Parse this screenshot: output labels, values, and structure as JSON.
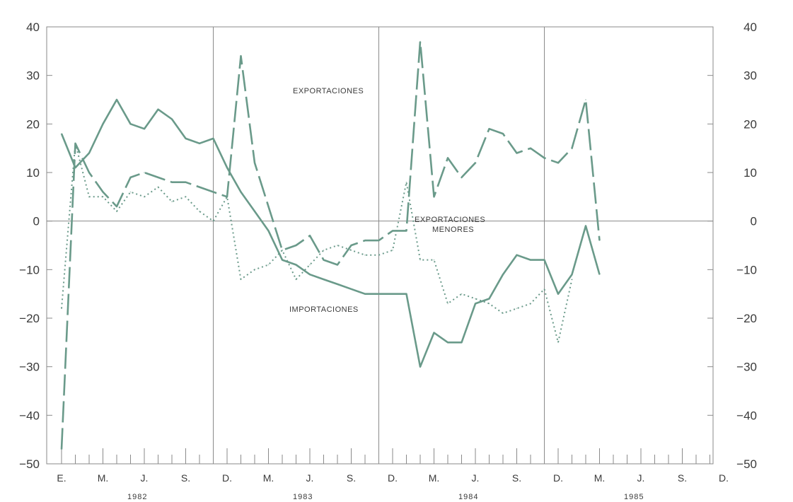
{
  "chart_data": {
    "type": "line",
    "title": "",
    "xlabel": "",
    "ylabel": "",
    "ylim": [
      -50,
      40
    ],
    "yticks": [
      40,
      30,
      20,
      10,
      0,
      -10,
      -20,
      -30,
      -40,
      -50
    ],
    "ytick_labels": [
      "40",
      "30",
      "20",
      "10",
      "0",
      "−10",
      "−20",
      "−30",
      "−40",
      "−50"
    ],
    "xtick_labels": [
      "E.",
      "M.",
      "J.",
      "S.",
      "D.",
      "M.",
      "J.",
      "S.",
      "D.",
      "M.",
      "J.",
      "S.",
      "D.",
      "M.",
      "J.",
      "S.",
      "D."
    ],
    "year_labels": [
      "1982",
      "1983",
      "1984",
      "1985"
    ],
    "grid": "vertical lines at each December, horizontal line at zero",
    "colors": {
      "axis": "#8a8a8a",
      "series": "#6a9a8a",
      "text": "#3a3a3a"
    },
    "annotations": [
      {
        "text": "EXPORTACIONES",
        "series": "Exportaciones"
      },
      {
        "text": "EXPORTACIONES",
        "series": "Exportaciones menores"
      },
      {
        "text": "MENORES",
        "series": "Exportaciones menores"
      },
      {
        "text": "IMPORTACIONES",
        "series": "Importaciones"
      }
    ],
    "series": [
      {
        "name": "Exportaciones",
        "style": "dashed",
        "values": [
          -47,
          16,
          10,
          6,
          3,
          9,
          10,
          9,
          8,
          8,
          7,
          6,
          5,
          34,
          12,
          3,
          -6,
          -5,
          -3,
          -8,
          -9,
          -5,
          -4,
          -4,
          -2,
          -2,
          37,
          5,
          13,
          9,
          12,
          19,
          18,
          14,
          15,
          13,
          12,
          15,
          25,
          -4
        ]
      },
      {
        "name": "Importaciones",
        "style": "solid",
        "values": [
          18,
          11,
          14,
          20,
          25,
          20,
          19,
          23,
          21,
          17,
          16,
          17,
          11,
          6,
          2,
          -2,
          -8,
          -9,
          -11,
          -12,
          -13,
          -14,
          -15,
          -15,
          -15,
          -15,
          -30,
          -23,
          -25,
          -25,
          -17,
          -16,
          -11,
          -7,
          -8,
          -8,
          -15,
          -11,
          -1,
          -11
        ]
      },
      {
        "name": "Exportaciones menores",
        "style": "dotted",
        "values": [
          -18,
          16,
          5,
          5,
          2,
          6,
          5,
          7,
          4,
          5,
          2,
          0,
          5,
          -12,
          -10,
          -9,
          -6,
          -12,
          -9,
          -6,
          -5,
          -6,
          -7,
          -7,
          -6,
          8,
          -8,
          -8,
          -17,
          -15,
          -16,
          -17,
          -19,
          -18,
          -17,
          -14,
          -25,
          -12
        ]
      }
    ]
  }
}
